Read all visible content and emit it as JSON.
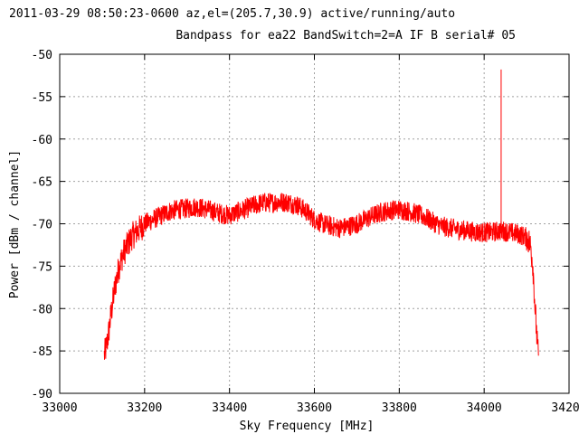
{
  "chart_data": {
    "type": "line",
    "title_lines": [
      "2011-03-29 08:50:23-0600  az,el=(205.7,30.9) active/running/auto",
      "Bandpass for ea22  BandSwitch=2=A  IF B  serial# 05"
    ],
    "xlabel": "Sky Frequency [MHz]",
    "ylabel": "Power [dBm / channel]",
    "xlim": [
      33000,
      34200
    ],
    "ylim": [
      -90,
      -50
    ],
    "xticks": [
      33000,
      33200,
      33400,
      33600,
      33800,
      34000,
      34200
    ],
    "yticks": [
      -50,
      -55,
      -60,
      -65,
      -70,
      -75,
      -80,
      -85,
      -90
    ],
    "grid": true,
    "line_color": "#ff0000",
    "series": [
      {
        "x": [
          33105,
          33110,
          33115,
          33120,
          33130,
          33140,
          33150,
          33160,
          33170,
          33180,
          33190,
          33200,
          33220,
          33240,
          33260,
          33280,
          33300,
          33320,
          33340,
          33360,
          33380,
          33400,
          33420,
          33440,
          33460,
          33480,
          33500,
          33520,
          33540,
          33560,
          33580,
          33600,
          33620,
          33640,
          33660,
          33680,
          33700,
          33720,
          33740,
          33760,
          33780,
          33800,
          33820,
          33840,
          33860,
          33880,
          33900,
          33920,
          33940,
          33960,
          33980,
          34000,
          34020,
          34040,
          34060,
          34080,
          34100,
          34105,
          34110,
          34115,
          34120,
          34125,
          34128
        ],
        "y": [
          -85.5,
          -84.5,
          -83,
          -81,
          -77.5,
          -75,
          -73.5,
          -72.5,
          -71.5,
          -71,
          -70.5,
          -70,
          -69.5,
          -69,
          -68.5,
          -68.3,
          -68.2,
          -68.0,
          -68.2,
          -68.5,
          -68.8,
          -69.0,
          -68.6,
          -68.2,
          -67.8,
          -67.5,
          -67.5,
          -67.4,
          -67.5,
          -67.8,
          -68.5,
          -69.5,
          -70.0,
          -70.3,
          -70.5,
          -70.3,
          -70.0,
          -69.5,
          -69.0,
          -68.6,
          -68.4,
          -68.3,
          -68.5,
          -68.8,
          -69.2,
          -69.8,
          -70.3,
          -70.5,
          -70.7,
          -70.8,
          -71.0,
          -71.0,
          -71.0,
          -70.8,
          -71.0,
          -71.2,
          -71.6,
          -72.0,
          -72.8,
          -75,
          -80,
          -84,
          -86
        ]
      }
    ],
    "spike": {
      "x": 34040,
      "y": -51.8
    }
  }
}
